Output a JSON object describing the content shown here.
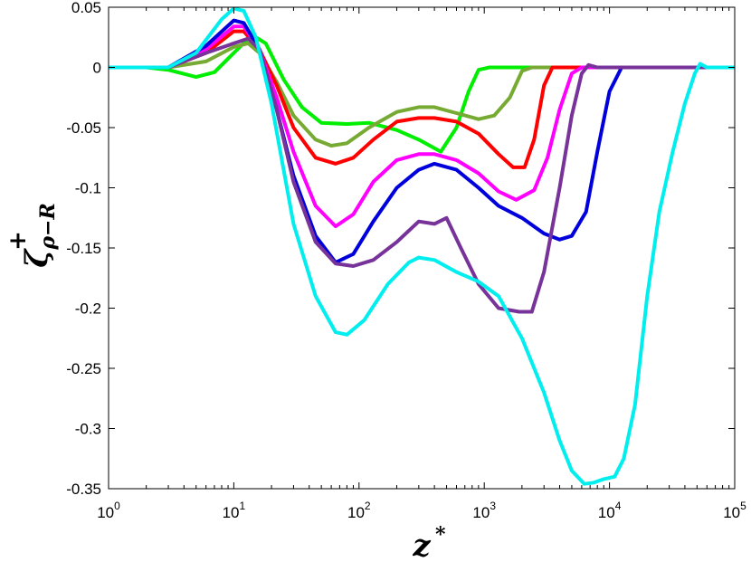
{
  "chart_data": {
    "type": "line",
    "title": "",
    "xlabel": {
      "base": "z",
      "sup": "*"
    },
    "ylabel": {
      "base": "ζ",
      "sup": "+",
      "sub": "ρ−R"
    },
    "xscale": "log",
    "xlim": [
      1,
      100000
    ],
    "ylim": [
      -0.35,
      0.05
    ],
    "grid": false,
    "legend": "none",
    "x_ticks": [
      {
        "base": "10",
        "exp": "0"
      },
      {
        "base": "10",
        "exp": "1"
      },
      {
        "base": "10",
        "exp": "2"
      },
      {
        "base": "10",
        "exp": "3"
      },
      {
        "base": "10",
        "exp": "4"
      },
      {
        "base": "10",
        "exp": "5"
      }
    ],
    "y_ticks": [
      "0.05",
      "0",
      "-0.05",
      "-0.1",
      "-0.15",
      "-0.2",
      "-0.25",
      "-0.3",
      "-0.35"
    ],
    "y_tick_values": [
      0.05,
      0,
      -0.05,
      -0.1,
      -0.15,
      -0.2,
      -0.25,
      -0.3,
      -0.35
    ],
    "series": [
      {
        "color": "#00ee00",
        "points": [
          [
            1,
            0
          ],
          [
            2,
            0
          ],
          [
            3,
            -0.002
          ],
          [
            5,
            -0.008
          ],
          [
            7,
            -0.004
          ],
          [
            10,
            0.012
          ],
          [
            14,
            0.027
          ],
          [
            18,
            0.02
          ],
          [
            25,
            -0.01
          ],
          [
            35,
            -0.033
          ],
          [
            50,
            -0.046
          ],
          [
            80,
            -0.047
          ],
          [
            120,
            -0.046
          ],
          [
            200,
            -0.052
          ],
          [
            300,
            -0.06
          ],
          [
            450,
            -0.07
          ],
          [
            600,
            -0.05
          ],
          [
            750,
            -0.02
          ],
          [
            900,
            -0.002
          ],
          [
            1100,
            0
          ],
          [
            100000,
            0
          ]
        ]
      },
      {
        "color": "#77aa33",
        "points": [
          [
            1,
            0
          ],
          [
            3,
            0
          ],
          [
            6,
            0.005
          ],
          [
            10,
            0.017
          ],
          [
            13,
            0.02
          ],
          [
            16,
            0.012
          ],
          [
            22,
            -0.012
          ],
          [
            30,
            -0.04
          ],
          [
            45,
            -0.06
          ],
          [
            60,
            -0.065
          ],
          [
            80,
            -0.063
          ],
          [
            120,
            -0.05
          ],
          [
            200,
            -0.037
          ],
          [
            300,
            -0.033
          ],
          [
            400,
            -0.033
          ],
          [
            600,
            -0.038
          ],
          [
            900,
            -0.043
          ],
          [
            1200,
            -0.04
          ],
          [
            1600,
            -0.025
          ],
          [
            2000,
            -0.003
          ],
          [
            2400,
            0
          ],
          [
            100000,
            0
          ]
        ]
      },
      {
        "color": "#ff0000",
        "points": [
          [
            1,
            0
          ],
          [
            3,
            0
          ],
          [
            6,
            0.012
          ],
          [
            10,
            0.03
          ],
          [
            12,
            0.03
          ],
          [
            16,
            0.015
          ],
          [
            22,
            -0.015
          ],
          [
            30,
            -0.05
          ],
          [
            45,
            -0.075
          ],
          [
            65,
            -0.08
          ],
          [
            90,
            -0.075
          ],
          [
            130,
            -0.06
          ],
          [
            200,
            -0.045
          ],
          [
            300,
            -0.042
          ],
          [
            400,
            -0.042
          ],
          [
            600,
            -0.045
          ],
          [
            900,
            -0.055
          ],
          [
            1300,
            -0.072
          ],
          [
            1700,
            -0.083
          ],
          [
            2100,
            -0.083
          ],
          [
            2500,
            -0.06
          ],
          [
            3000,
            -0.015
          ],
          [
            3500,
            0
          ],
          [
            100000,
            0
          ]
        ]
      },
      {
        "color": "#ff00ff",
        "points": [
          [
            1,
            0
          ],
          [
            3,
            0
          ],
          [
            6,
            0.015
          ],
          [
            10,
            0.034
          ],
          [
            12,
            0.034
          ],
          [
            16,
            0.015
          ],
          [
            22,
            -0.025
          ],
          [
            30,
            -0.07
          ],
          [
            45,
            -0.115
          ],
          [
            65,
            -0.132
          ],
          [
            90,
            -0.122
          ],
          [
            130,
            -0.095
          ],
          [
            200,
            -0.077
          ],
          [
            300,
            -0.072
          ],
          [
            400,
            -0.072
          ],
          [
            600,
            -0.077
          ],
          [
            900,
            -0.088
          ],
          [
            1300,
            -0.103
          ],
          [
            1800,
            -0.11
          ],
          [
            2500,
            -0.102
          ],
          [
            3200,
            -0.075
          ],
          [
            4000,
            -0.035
          ],
          [
            5000,
            -0.005
          ],
          [
            6000,
            0
          ],
          [
            100000,
            0
          ]
        ]
      },
      {
        "color": "#0000dd",
        "points": [
          [
            1,
            0
          ],
          [
            3,
            0
          ],
          [
            6,
            0.018
          ],
          [
            10,
            0.039
          ],
          [
            12,
            0.037
          ],
          [
            16,
            0.015
          ],
          [
            22,
            -0.035
          ],
          [
            30,
            -0.09
          ],
          [
            45,
            -0.14
          ],
          [
            65,
            -0.162
          ],
          [
            90,
            -0.155
          ],
          [
            130,
            -0.128
          ],
          [
            200,
            -0.1
          ],
          [
            300,
            -0.085
          ],
          [
            400,
            -0.08
          ],
          [
            600,
            -0.085
          ],
          [
            900,
            -0.1
          ],
          [
            1300,
            -0.115
          ],
          [
            2000,
            -0.125
          ],
          [
            3000,
            -0.138
          ],
          [
            4000,
            -0.143
          ],
          [
            5000,
            -0.14
          ],
          [
            6500,
            -0.12
          ],
          [
            8000,
            -0.07
          ],
          [
            10000,
            -0.02
          ],
          [
            12500,
            0
          ],
          [
            100000,
            0
          ]
        ]
      },
      {
        "color": "#773399",
        "points": [
          [
            1,
            0
          ],
          [
            3,
            0
          ],
          [
            6,
            0.012
          ],
          [
            10,
            0.02
          ],
          [
            13,
            0.024
          ],
          [
            16,
            0.015
          ],
          [
            22,
            -0.035
          ],
          [
            30,
            -0.095
          ],
          [
            45,
            -0.145
          ],
          [
            65,
            -0.163
          ],
          [
            90,
            -0.165
          ],
          [
            130,
            -0.16
          ],
          [
            200,
            -0.145
          ],
          [
            300,
            -0.128
          ],
          [
            400,
            -0.13
          ],
          [
            500,
            -0.125
          ],
          [
            650,
            -0.15
          ],
          [
            900,
            -0.18
          ],
          [
            1300,
            -0.2
          ],
          [
            1900,
            -0.203
          ],
          [
            2400,
            -0.203
          ],
          [
            3000,
            -0.17
          ],
          [
            4000,
            -0.1
          ],
          [
            5000,
            -0.04
          ],
          [
            6000,
            -0.005
          ],
          [
            6800,
            0.002
          ],
          [
            8000,
            0
          ],
          [
            100000,
            0
          ]
        ]
      },
      {
        "color": "#00eeee",
        "points": [
          [
            1,
            0
          ],
          [
            3,
            0
          ],
          [
            5,
            0.012
          ],
          [
            8,
            0.04
          ],
          [
            10,
            0.049
          ],
          [
            12,
            0.047
          ],
          [
            15,
            0.025
          ],
          [
            20,
            -0.03
          ],
          [
            30,
            -0.13
          ],
          [
            45,
            -0.19
          ],
          [
            65,
            -0.22
          ],
          [
            80,
            -0.222
          ],
          [
            110,
            -0.21
          ],
          [
            170,
            -0.18
          ],
          [
            250,
            -0.162
          ],
          [
            300,
            -0.158
          ],
          [
            400,
            -0.16
          ],
          [
            600,
            -0.17
          ],
          [
            900,
            -0.178
          ],
          [
            1300,
            -0.19
          ],
          [
            2000,
            -0.225
          ],
          [
            3000,
            -0.27
          ],
          [
            4000,
            -0.31
          ],
          [
            5000,
            -0.335
          ],
          [
            6300,
            -0.346
          ],
          [
            7500,
            -0.345
          ],
          [
            9000,
            -0.342
          ],
          [
            11000,
            -0.34
          ],
          [
            13000,
            -0.325
          ],
          [
            16000,
            -0.28
          ],
          [
            20000,
            -0.19
          ],
          [
            25000,
            -0.12
          ],
          [
            32000,
            -0.07
          ],
          [
            40000,
            -0.03
          ],
          [
            48000,
            -0.005
          ],
          [
            53000,
            0.003
          ],
          [
            60000,
            0
          ],
          [
            100000,
            0
          ]
        ]
      }
    ]
  }
}
